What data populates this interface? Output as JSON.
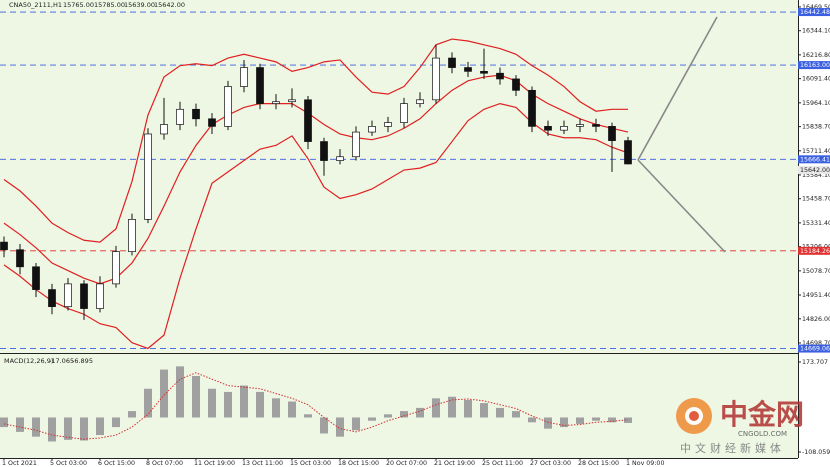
{
  "chart_data": {
    "type": "candlestick",
    "header": {
      "symbol": "CNA50_2111,H1",
      "ohlc": [
        "15765.00",
        "15785.00",
        "15639.00",
        "15642.00"
      ]
    },
    "categories": [
      "1 Oct 2021",
      null,
      null,
      "5 Oct 03:00",
      null,
      null,
      "6 Oct 15:00",
      null,
      null,
      "8 Oct 07:00",
      null,
      null,
      "11 Oct 19:00",
      null,
      null,
      "13 Oct 11:00",
      null,
      null,
      "15 Oct 03:00",
      null,
      null,
      "18 Oct 15:00",
      null,
      null,
      "20 Oct 07:00",
      null,
      null,
      "21 Oct 19:00",
      null,
      null,
      "25 Oct 11:00",
      null,
      null,
      "27 Oct 03:00",
      null,
      null,
      "28 Oct 15:00",
      null,
      null,
      "1 Nov 09:00"
    ],
    "open": [
      15230,
      15190,
      15100,
      14980,
      14890,
      15010,
      14880,
      15010,
      15180,
      15350,
      15800,
      15850,
      15930,
      15880,
      15840,
      16050,
      16150,
      15960,
      15970,
      15980,
      15760,
      15660,
      15680,
      15810,
      15840,
      15860,
      15960,
      15980,
      16200,
      16150,
      16130,
      16120,
      16090,
      16030,
      15840,
      15820,
      15840,
      15850,
      15840,
      15765
    ],
    "high": [
      15260,
      15220,
      15120,
      15010,
      15040,
      15030,
      15050,
      15210,
      15380,
      15830,
      15990,
      15970,
      15960,
      15910,
      16080,
      16190,
      16170,
      16010,
      16040,
      16000,
      15780,
      15720,
      15840,
      15870,
      15890,
      15990,
      16020,
      16270,
      16230,
      16180,
      16250,
      16150,
      16110,
      16050,
      15870,
      15870,
      15880,
      15880,
      15860,
      15785
    ],
    "low": [
      15150,
      15060,
      14940,
      14850,
      14870,
      14820,
      14860,
      14990,
      15160,
      15330,
      15770,
      15820,
      15840,
      15800,
      15820,
      16020,
      15930,
      15930,
      15940,
      15720,
      15580,
      15640,
      15660,
      15790,
      15810,
      15830,
      15940,
      15960,
      16120,
      16100,
      16090,
      16060,
      16000,
      15810,
      15790,
      15800,
      15810,
      15810,
      15600,
      15639
    ],
    "close": [
      15190,
      15100,
      14980,
      14890,
      15010,
      14880,
      15010,
      15180,
      15350,
      15800,
      15850,
      15930,
      15880,
      15840,
      16050,
      16150,
      15960,
      15970,
      15980,
      15760,
      15660,
      15680,
      15810,
      15840,
      15860,
      15960,
      15980,
      16200,
      16150,
      16130,
      16120,
      16090,
      16030,
      15840,
      15820,
      15840,
      15850,
      15840,
      15765,
      15642
    ],
    "bands": {
      "color": "#e02020",
      "upper": [
        15560,
        15500,
        15420,
        15330,
        15280,
        15240,
        15230,
        15300,
        15550,
        15900,
        16100,
        16160,
        16170,
        16160,
        16200,
        16220,
        16200,
        16180,
        16130,
        16150,
        16180,
        16190,
        16100,
        16020,
        16010,
        16050,
        16150,
        16270,
        16300,
        16290,
        16270,
        16250,
        16220,
        16160,
        16110,
        16050,
        15970,
        15920,
        15930,
        15930
      ],
      "middle": [
        15330,
        15270,
        15200,
        15120,
        15080,
        15040,
        15010,
        15040,
        15120,
        15250,
        15420,
        15600,
        15740,
        15850,
        15900,
        15940,
        15960,
        15960,
        15960,
        15910,
        15850,
        15800,
        15780,
        15770,
        15790,
        15830,
        15880,
        15960,
        16030,
        16080,
        16100,
        16110,
        16080,
        16010,
        15960,
        15920,
        15880,
        15850,
        15830,
        15810
      ],
      "lower": [
        15110,
        15050,
        14980,
        14920,
        14880,
        14850,
        14800,
        14780,
        14700,
        14670,
        14740,
        15040,
        15300,
        15540,
        15600,
        15660,
        15720,
        15740,
        15790,
        15670,
        15520,
        15460,
        15480,
        15510,
        15560,
        15610,
        15620,
        15650,
        15760,
        15870,
        15930,
        15960,
        15940,
        15860,
        15800,
        15780,
        15780,
        15770,
        15730,
        15700
      ]
    },
    "ylim": [
      14651,
      16506
    ],
    "yticks": [
      {
        "value": 16469.5,
        "label": "16469.50"
      },
      {
        "value": 16344.1,
        "label": "16344.10"
      },
      {
        "value": 16216.8,
        "label": "16216.80"
      },
      {
        "value": 16091.4,
        "label": "16091.40"
      },
      {
        "value": 15964.1,
        "label": "15964.10"
      },
      {
        "value": 15838.7,
        "label": "15838.70"
      },
      {
        "value": 15711.4,
        "label": "15711.40"
      },
      {
        "value": 15584.1,
        "label": "15584.10"
      },
      {
        "value": 15458.7,
        "label": "15458.70"
      },
      {
        "value": 15331.4,
        "label": "15331.40"
      },
      {
        "value": 15206,
        "label": "15206.00"
      },
      {
        "value": 15078.7,
        "label": "15078.70"
      },
      {
        "value": 14951.4,
        "label": "14951.40"
      },
      {
        "value": 14826,
        "label": "14826.00"
      },
      {
        "value": 14698.7,
        "label": "14698.70"
      }
    ],
    "levels": [
      {
        "value": 16442.48,
        "color": "#3a5fe0"
      },
      {
        "value": 16163,
        "label": "16163.00",
        "color": "#3a5fe0"
      },
      {
        "value": 15666.41,
        "color": "#3a5fe0"
      },
      {
        "value": 15184.26,
        "color": "#e03030"
      },
      {
        "value": 14669.06,
        "color": "#3a5fe0"
      }
    ],
    "macd": {
      "name": "MACD(12,26,9)",
      "color": "#a0a0a0",
      "signal_color": "#d03030",
      "values": [
        -30,
        -45,
        -60,
        -75,
        -70,
        -72,
        -55,
        -30,
        20,
        90,
        150,
        160,
        130,
        90,
        80,
        100,
        80,
        60,
        50,
        10,
        -50,
        -60,
        -40,
        -10,
        10,
        20,
        30,
        60,
        65,
        55,
        45,
        30,
        20,
        -15,
        -35,
        -30,
        -20,
        -10,
        -15,
        -17.065
      ],
      "signal": [
        -20,
        -30,
        -40,
        -55,
        -62,
        -68,
        -64,
        -55,
        -30,
        10,
        70,
        120,
        140,
        120,
        100,
        95,
        90,
        75,
        60,
        40,
        0,
        -35,
        -45,
        -30,
        -10,
        5,
        20,
        40,
        55,
        58,
        52,
        40,
        28,
        5,
        -15,
        -25,
        -22,
        -15,
        -12,
        -6.895
      ],
      "ylim": [
        -126.8,
        192.5
      ],
      "yticks": [
        173.707,
        -108.059
      ]
    },
    "watermark": {
      "name": "中金网",
      "site": "CNGOLD.COM",
      "slogan": "中文财经新媒体"
    }
  }
}
